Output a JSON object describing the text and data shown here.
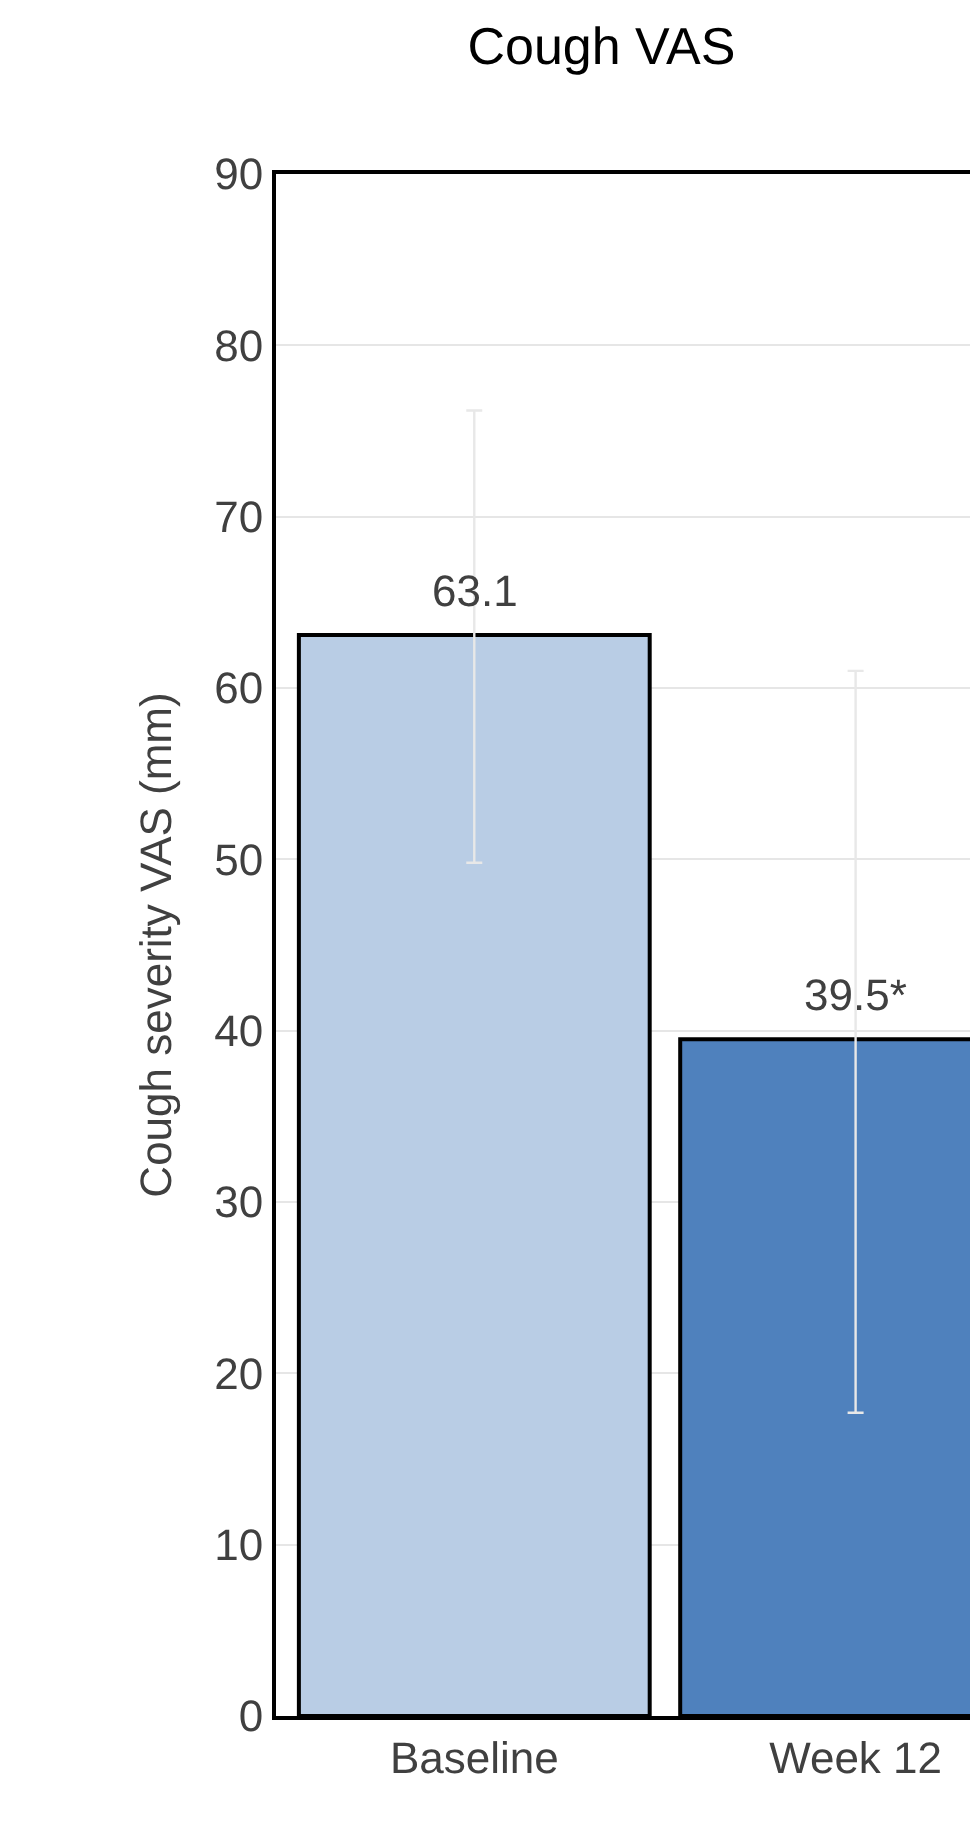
{
  "chart_data": {
    "type": "bar",
    "title": "Cough VAS",
    "ylabel": "Cough severity VAS (mm)",
    "categories": [
      "Baseline",
      "Week 12"
    ],
    "values": [
      63.1,
      39.5
    ],
    "colors": [
      "#b9cde5",
      "#4f81bd"
    ],
    "value_labels": [
      "63.1",
      "39.5*"
    ],
    "errors": [
      [
        49.8,
        76.2
      ],
      [
        17.7,
        61.0
      ]
    ],
    "ylim": [
      0,
      90
    ],
    "yticks": [
      0,
      10,
      20,
      30,
      40,
      50,
      60,
      70,
      80,
      90
    ],
    "grid": "y"
  }
}
